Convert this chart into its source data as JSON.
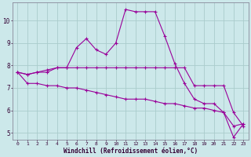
{
  "xlabel": "Windchill (Refroidissement éolien,°C)",
  "background_color": "#cce8ea",
  "grid_color": "#aacccc",
  "line_color": "#990099",
  "x": [
    0,
    1,
    2,
    3,
    4,
    5,
    6,
    7,
    8,
    9,
    10,
    11,
    12,
    13,
    14,
    15,
    16,
    17,
    18,
    19,
    20,
    21,
    22,
    23
  ],
  "series1": [
    7.7,
    7.6,
    7.7,
    7.7,
    7.9,
    7.9,
    8.8,
    9.2,
    8.7,
    8.5,
    9.0,
    10.5,
    10.4,
    10.4,
    10.4,
    9.3,
    8.1,
    7.2,
    6.5,
    6.3,
    6.3,
    5.9,
    5.3,
    5.4
  ],
  "series2": [
    7.7,
    7.6,
    7.7,
    7.8,
    7.9,
    7.9,
    7.9,
    7.9,
    7.9,
    7.9,
    7.9,
    7.9,
    7.9,
    7.9,
    7.9,
    7.9,
    7.9,
    7.9,
    7.1,
    7.1,
    7.1,
    7.1,
    5.9,
    5.3
  ],
  "series3": [
    7.7,
    7.2,
    7.2,
    7.1,
    7.1,
    7.0,
    7.0,
    6.9,
    6.8,
    6.7,
    6.6,
    6.5,
    6.5,
    6.5,
    6.4,
    6.3,
    6.3,
    6.2,
    6.1,
    6.1,
    6.0,
    5.9,
    4.8,
    5.4
  ],
  "ylim": [
    4.7,
    10.8
  ],
  "xlim": [
    -0.5,
    23.5
  ],
  "yticks": [
    5,
    6,
    7,
    8,
    9,
    10
  ],
  "xticks": [
    0,
    1,
    2,
    3,
    4,
    5,
    6,
    7,
    8,
    9,
    10,
    11,
    12,
    13,
    14,
    15,
    16,
    17,
    18,
    19,
    20,
    21,
    22,
    23
  ],
  "tick_label_color": "#330033",
  "xlabel_color": "#330033",
  "spine_color": "#888899"
}
